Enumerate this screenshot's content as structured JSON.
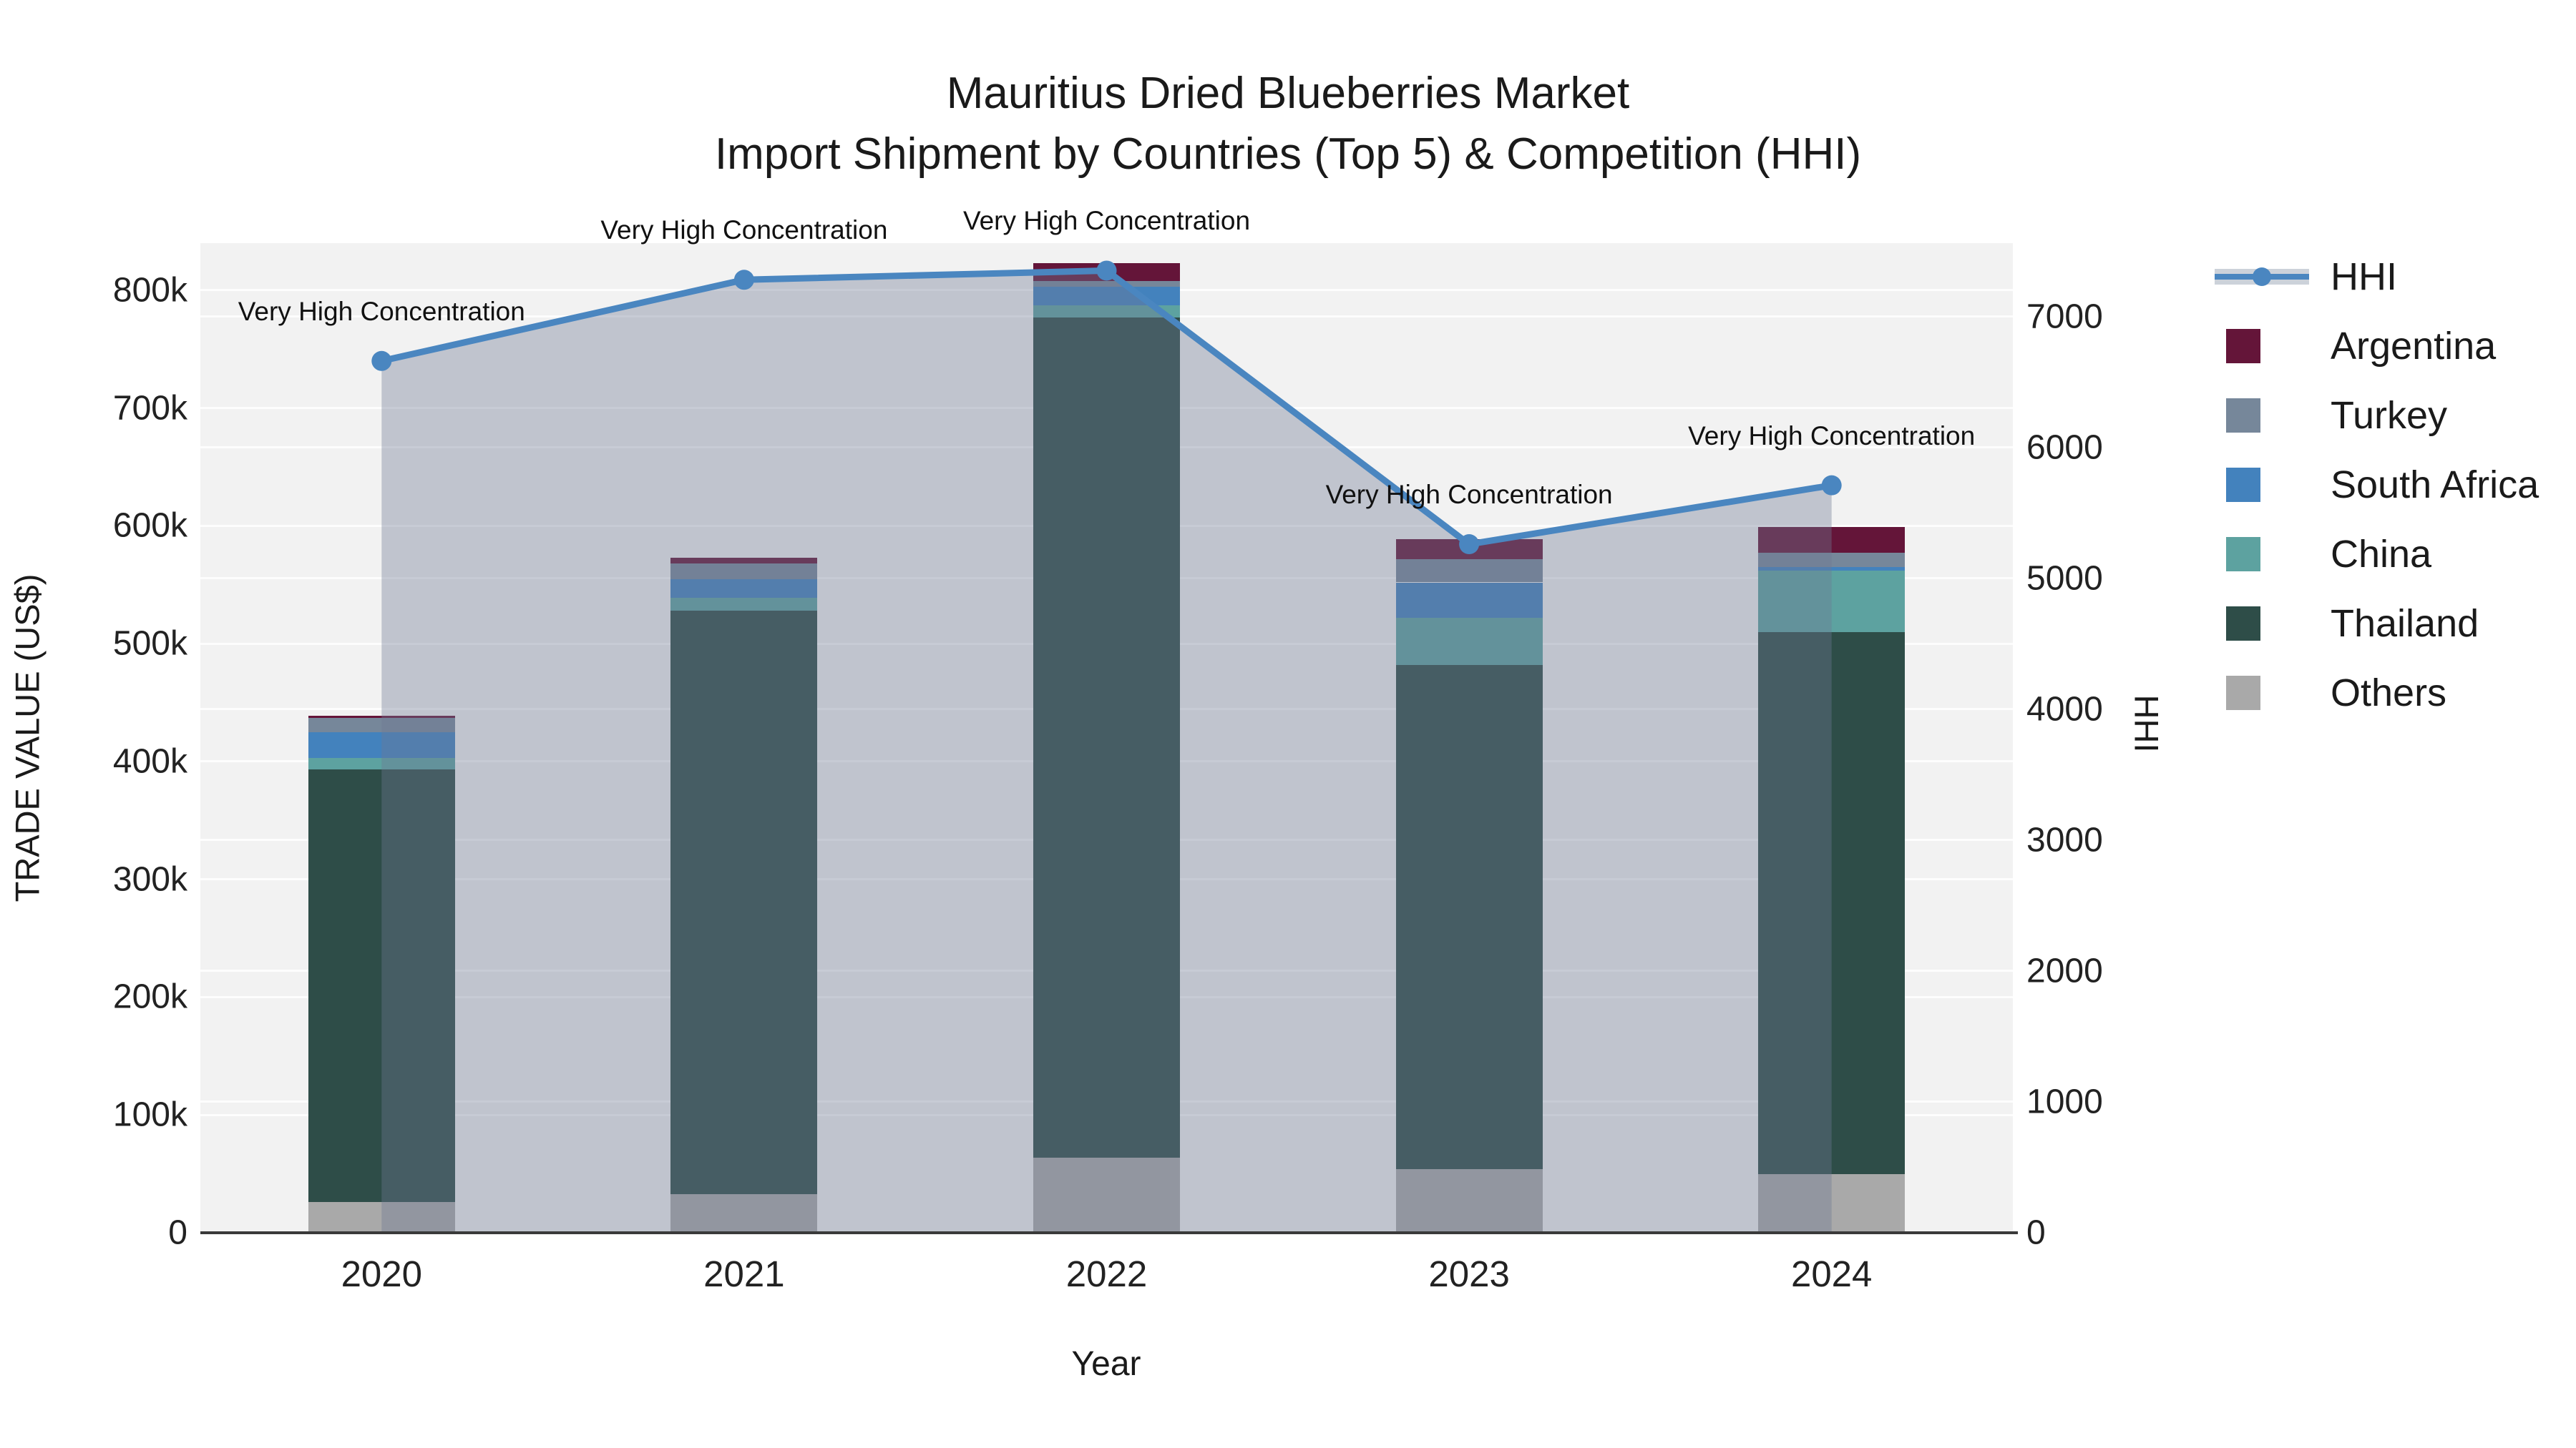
{
  "title": {
    "line1": "Mauritius Dried Blueberries Market",
    "line2": "Import Shipment by Countries (Top 5) & Competition (HHI)"
  },
  "axes": {
    "x_title": "Year",
    "y_left_title": "TRADE VALUE (US$)",
    "y_right_title": "HHI",
    "y_left_ticks": [
      "0",
      "100k",
      "200k",
      "300k",
      "400k",
      "500k",
      "600k",
      "700k",
      "800k"
    ],
    "y_right_ticks": [
      "0",
      "1000",
      "2000",
      "3000",
      "4000",
      "5000",
      "6000",
      "7000"
    ]
  },
  "legend": {
    "items": [
      {
        "label": "HHI",
        "type": "line",
        "color": "#4a86c0"
      },
      {
        "label": "Argentina",
        "type": "square",
        "color": "#641539"
      },
      {
        "label": "Turkey",
        "type": "square",
        "color": "#76879a"
      },
      {
        "label": "South Africa",
        "type": "square",
        "color": "#4382bd"
      },
      {
        "label": "China",
        "type": "square",
        "color": "#5da2a0"
      },
      {
        "label": "Thailand",
        "type": "square",
        "color": "#2e4d48"
      },
      {
        "label": "Others",
        "type": "square",
        "color": "#a9a9a9"
      }
    ]
  },
  "chart_data": {
    "type": "bar",
    "barmode": "stack",
    "title": "Mauritius Dried Blueberries Market — Import Shipment by Countries (Top 5) & Competition (HHI)",
    "xlabel": "Year",
    "ylabel": "TRADE VALUE (US$)",
    "y2label": "HHI",
    "categories": [
      "2020",
      "2021",
      "2022",
      "2023",
      "2024"
    ],
    "series": [
      {
        "name": "Others",
        "color": "#a9a9a9",
        "values": [
          26000,
          33000,
          64000,
          54000,
          50000
        ]
      },
      {
        "name": "Thailand",
        "color": "#2e4d48",
        "values": [
          367000,
          495000,
          713000,
          428000,
          460000
        ]
      },
      {
        "name": "China",
        "color": "#5da2a0",
        "values": [
          10000,
          11000,
          10000,
          40000,
          52000
        ]
      },
      {
        "name": "South Africa",
        "color": "#4382bd",
        "values": [
          22000,
          16000,
          16000,
          30000,
          3000
        ]
      },
      {
        "name": "Turkey",
        "color": "#76879a",
        "values": [
          12000,
          13000,
          5000,
          20000,
          12000
        ]
      },
      {
        "name": "Argentina",
        "color": "#641539",
        "values": [
          2000,
          5000,
          15000,
          17000,
          22000
        ]
      }
    ],
    "line_series": {
      "name": "HHI",
      "yaxis": "right",
      "color": "#4a86c0",
      "area_fill": "rgba(110,122,148,0.38)",
      "values": [
        6660,
        7280,
        7350,
        5260,
        5710
      ]
    },
    "annotations": {
      "text": "Very High Concentration",
      "points": [
        "2020",
        "2021",
        "2022",
        "2023",
        "2024"
      ]
    },
    "ylim": [
      0,
      840000
    ],
    "y2lim": [
      0,
      7560
    ],
    "grid": true,
    "legend_position": "right"
  },
  "colors": {
    "plot_bg": "#f2f2f2",
    "grid": "rgba(255,255,255,0.85)",
    "axis_line": "#3a3a3a"
  }
}
